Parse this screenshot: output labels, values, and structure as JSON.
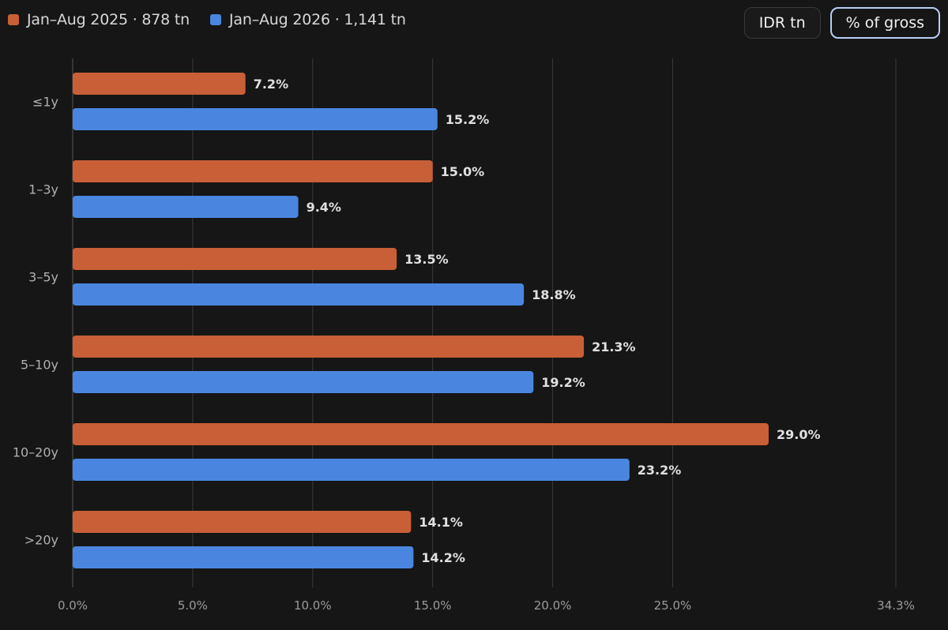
{
  "legend": {
    "series_a": "Jan–Aug 2025 · 878 tn",
    "series_b": "Jan–Aug 2026 · 1,141 tn"
  },
  "toggles": {
    "idr_label": "IDR tn",
    "pct_label": "% of gross",
    "selected": "% of gross"
  },
  "colors": {
    "series_a": "#c95f37",
    "series_b": "#4a86e0",
    "background": "#161616",
    "grid": "#3a3a3a"
  },
  "chart_data": {
    "type": "bar",
    "orientation": "horizontal",
    "categories": [
      "≤1y",
      "1–3y",
      "3–5y",
      "5–10y",
      "10–20y",
      ">20y"
    ],
    "series": [
      {
        "name": "Jan–Aug 2025 · 878 tn",
        "values": [
          7.2,
          15.0,
          13.5,
          21.3,
          29.0,
          14.1
        ]
      },
      {
        "name": "Jan–Aug 2026 · 1,141 tn",
        "values": [
          15.2,
          9.4,
          18.8,
          19.2,
          23.2,
          14.2
        ]
      }
    ],
    "value_labels": [
      [
        "7.2%",
        "15.0%",
        "13.5%",
        "21.3%",
        "29.0%",
        "14.1%"
      ],
      [
        "15.2%",
        "9.4%",
        "18.8%",
        "19.2%",
        "23.2%",
        "14.2%"
      ]
    ],
    "xticks": [
      0,
      5,
      10,
      15,
      20,
      25,
      34.3
    ],
    "xtick_labels": [
      "0.0%",
      "5.0%",
      "10.0%",
      "15.0%",
      "20.0%",
      "25.0%",
      "34.3%"
    ],
    "xlim": [
      0,
      34.3
    ],
    "grid": true,
    "legend_position": "top-left"
  }
}
